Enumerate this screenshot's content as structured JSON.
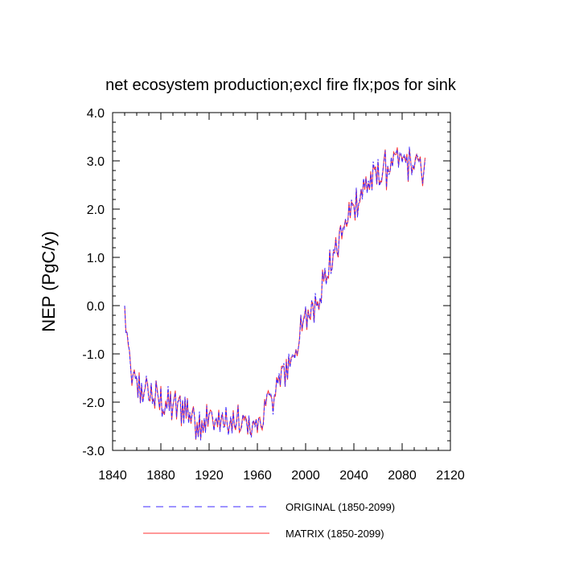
{
  "chart_data": {
    "type": "line",
    "title": "net ecosystem production;excl fire flx;pos for sink",
    "xlabel": "",
    "ylabel": "NEP  (PgC/y)",
    "xlim": [
      1840,
      2120
    ],
    "ylim": [
      -3.0,
      4.0
    ],
    "xticks": [
      1840,
      1880,
      1920,
      1960,
      2000,
      2040,
      2080,
      2120
    ],
    "xtick_labels": [
      "1840",
      "1880",
      "1920",
      "1960",
      "2000",
      "2040",
      "2080",
      "2120"
    ],
    "yticks": [
      -3.0,
      -2.0,
      -1.0,
      0.0,
      1.0,
      2.0,
      3.0,
      4.0
    ],
    "ytick_labels": [
      "-3.0",
      "-2.0",
      "-1.0",
      "0.0",
      "1.0",
      "2.0",
      "3.0",
      "4.0"
    ],
    "grid": false,
    "legend_position": "bottom",
    "years": [
      1850,
      2099
    ],
    "anchors": [
      [
        1850,
        -0.2
      ],
      [
        1853,
        -1.0
      ],
      [
        1856,
        -1.5
      ],
      [
        1860,
        -1.7
      ],
      [
        1870,
        -1.8
      ],
      [
        1880,
        -2.0
      ],
      [
        1890,
        -2.1
      ],
      [
        1900,
        -2.1
      ],
      [
        1910,
        -2.4
      ],
      [
        1920,
        -2.35
      ],
      [
        1930,
        -2.4
      ],
      [
        1940,
        -2.5
      ],
      [
        1950,
        -2.45
      ],
      [
        1960,
        -2.5
      ],
      [
        1970,
        -2.0
      ],
      [
        1980,
        -1.5
      ],
      [
        1990,
        -1.0
      ],
      [
        2000,
        -0.3
      ],
      [
        2010,
        0.2
      ],
      [
        2020,
        0.8
      ],
      [
        2030,
        1.5
      ],
      [
        2040,
        2.1
      ],
      [
        2050,
        2.5
      ],
      [
        2060,
        2.7
      ],
      [
        2070,
        2.9
      ],
      [
        2080,
        3.0
      ],
      [
        2090,
        2.9
      ],
      [
        2099,
        2.85
      ]
    ],
    "noise_amplitude": 0.32,
    "series": [
      {
        "name": "ORIGINAL (1850-2099)",
        "color": "#3c28ff",
        "style": "dashed",
        "offset": 0.0
      },
      {
        "name": "MATRIX (1850-2099)",
        "color": "#ff3030",
        "style": "solid",
        "offset": 0.06
      }
    ]
  },
  "legend": {
    "items": [
      {
        "label": "ORIGINAL (1850-2099)",
        "color": "#3c28ff",
        "style": "dashed"
      },
      {
        "label": "MATRIX (1850-2099)",
        "color": "#ff3030",
        "style": "solid"
      }
    ]
  }
}
